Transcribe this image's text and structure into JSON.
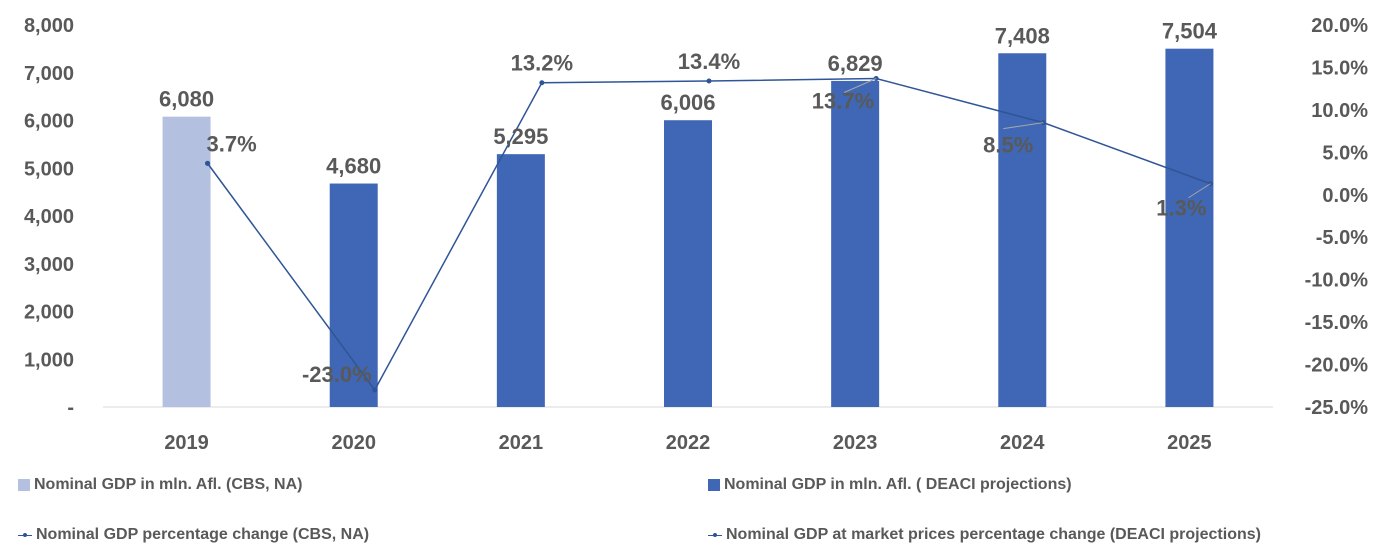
{
  "chart_data": {
    "type": "bar",
    "categories": [
      "2019",
      "2020",
      "2021",
      "2022",
      "2023",
      "2024",
      "2025"
    ],
    "bar_series": [
      {
        "name": "Nominal GDP in mln. Afl. (CBS, NA)",
        "color": "#B4C0E0",
        "values": [
          6080,
          null,
          null,
          null,
          null,
          null,
          null
        ],
        "labels": [
          "6,080",
          "",
          "",
          "",
          "",
          "",
          ""
        ]
      },
      {
        "name": "Nominal GDP in mln. Afl. ( DEACI projections)",
        "color": "#3F67B5",
        "values": [
          null,
          4680,
          5295,
          6006,
          6829,
          7408,
          7504
        ],
        "labels": [
          "",
          "4,680",
          "5,295",
          "6,006",
          "6,829",
          "7,408",
          "7,504"
        ]
      }
    ],
    "line_series": [
      {
        "name": "Nominal GDP percentage change  (CBS, NA)",
        "color": "#2F5597",
        "values": [
          3.7,
          null,
          null,
          null,
          null,
          null,
          null
        ],
        "labels": [
          "3.7%",
          "",
          "",
          "",
          "",
          "",
          ""
        ]
      },
      {
        "name": "Nominal GDP at market prices percentage change (DEACI projections)",
        "color": "#2F5597",
        "values": [
          3.7,
          -23.0,
          13.2,
          13.4,
          13.7,
          8.5,
          1.3
        ],
        "labels": [
          "",
          "-23.0%",
          "13.2%",
          "13.4%",
          "13.7%",
          "8.5%",
          "1.3%"
        ]
      }
    ],
    "y_left": {
      "ylim": [
        0,
        8000
      ],
      "ticks": [
        0,
        1000,
        2000,
        3000,
        4000,
        5000,
        6000,
        7000,
        8000
      ],
      "tick_labels": [
        "-",
        "1,000",
        "2,000",
        "3,000",
        "4,000",
        "5,000",
        "6,000",
        "7,000",
        "8,000"
      ]
    },
    "y_right": {
      "ylim": [
        -25,
        20
      ],
      "ticks": [
        -25,
        -20,
        -15,
        -10,
        -5,
        0,
        5,
        10,
        15,
        20
      ],
      "tick_labels": [
        "-25.0%",
        "-20.0%",
        "-15.0%",
        "-10.0%",
        "-5.0%",
        "0.0%",
        "5.0%",
        "10.0%",
        "15.0%",
        "20.0%"
      ]
    },
    "grid": false,
    "legend_position": "bottom"
  }
}
